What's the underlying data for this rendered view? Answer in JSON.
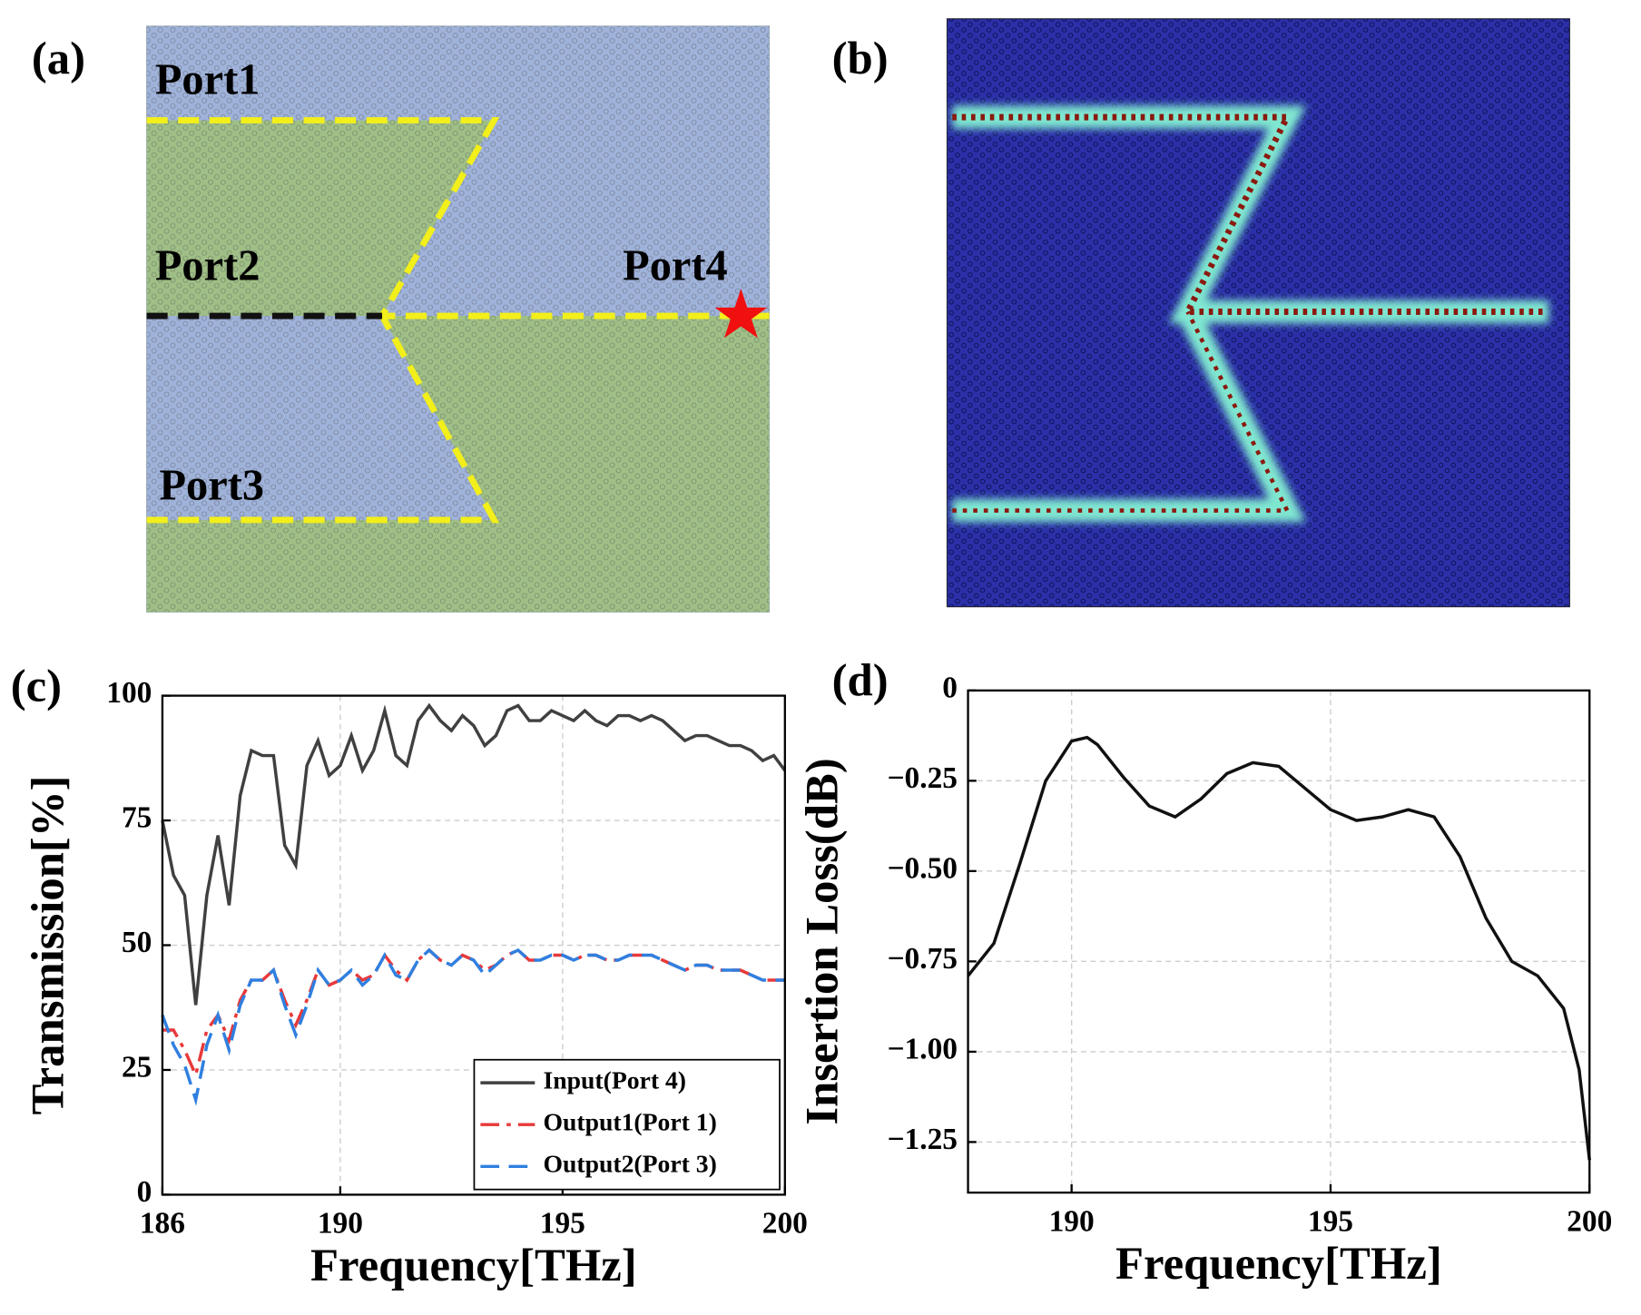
{
  "panels": {
    "a": {
      "label": "(a)",
      "ports": [
        "Port1",
        "Port2",
        "Port3",
        "Port4"
      ]
    },
    "b": {
      "label": "(b)"
    }
  },
  "chart_data": [
    {
      "type": "line",
      "panel_label": "(c)",
      "x_label": "Frequency[THz]",
      "y_label": "Transmission[%]",
      "x": [
        186,
        186.25,
        186.5,
        186.75,
        187,
        187.25,
        187.5,
        187.75,
        188,
        188.25,
        188.5,
        188.75,
        189,
        189.25,
        189.5,
        189.75,
        190,
        190.25,
        190.5,
        190.75,
        191,
        191.25,
        191.5,
        191.75,
        192,
        192.25,
        192.5,
        192.75,
        193,
        193.25,
        193.5,
        193.75,
        194,
        194.25,
        194.5,
        194.75,
        195,
        195.25,
        195.5,
        195.75,
        196,
        196.25,
        196.5,
        196.75,
        197,
        197.25,
        197.5,
        197.75,
        198,
        198.25,
        198.5,
        198.75,
        199,
        199.25,
        199.5,
        199.75,
        200
      ],
      "series": [
        {
          "name": "Input(Port 4)",
          "color": "#404040",
          "dash": "solid",
          "values": [
            75,
            64,
            60,
            38,
            60,
            72,
            58,
            80,
            89,
            88,
            88,
            70,
            66,
            86,
            91,
            84,
            86,
            92,
            85,
            89,
            97,
            88,
            86,
            95,
            98,
            95,
            93,
            96,
            94,
            90,
            92,
            97,
            98,
            95,
            95,
            97,
            96,
            95,
            97,
            95,
            94,
            96,
            96,
            95,
            96,
            95,
            93,
            91,
            92,
            92,
            91,
            90,
            90,
            89,
            87,
            88,
            85
          ]
        },
        {
          "name": "Output1(Port 1)",
          "color": "#e8393a",
          "dash": "dash-dot",
          "values": [
            33,
            33,
            29,
            24,
            33,
            36,
            31,
            39,
            43,
            43,
            45,
            39,
            34,
            39,
            45,
            42,
            43,
            45,
            43,
            44,
            48,
            45,
            43,
            47,
            49,
            47,
            46,
            48,
            47,
            45,
            46,
            48,
            49,
            47,
            47,
            48,
            48,
            47,
            48,
            48,
            47,
            47,
            48,
            48,
            48,
            47,
            46,
            45,
            46,
            46,
            45,
            45,
            45,
            44,
            43,
            43,
            43
          ]
        },
        {
          "name": "Output2(Port 3)",
          "color": "#2f7fe0",
          "dash": "dash",
          "values": [
            36,
            30,
            26,
            19,
            30,
            36,
            29,
            38,
            43,
            43,
            45,
            38,
            32,
            38,
            45,
            42,
            43,
            45,
            42,
            44,
            48,
            44,
            43,
            47,
            49,
            47,
            46,
            48,
            47,
            44,
            46,
            48,
            49,
            47,
            47,
            48,
            48,
            47,
            48,
            48,
            47,
            47,
            48,
            48,
            48,
            47,
            46,
            45,
            46,
            46,
            45,
            45,
            45,
            44,
            43,
            43,
            43
          ]
        }
      ],
      "xlim": [
        186,
        200
      ],
      "xticks": [
        186,
        190,
        195,
        200
      ],
      "ylim": [
        0,
        100
      ],
      "yticks": [
        0,
        25,
        50,
        75,
        100
      ],
      "grid": true,
      "legend": "lower right"
    },
    {
      "type": "line",
      "panel_label": "(d)",
      "x_label": "Frequency[THz]",
      "y_label": "Insertion Loss(dB)",
      "x": [
        188,
        188.5,
        189,
        189.5,
        190,
        190.3,
        190.5,
        191,
        191.5,
        192,
        192.5,
        193,
        193.5,
        194,
        194.5,
        195,
        195.5,
        196,
        196.5,
        197,
        197.5,
        198,
        198.5,
        199,
        199.5,
        199.8,
        200
      ],
      "values": [
        -0.79,
        -0.7,
        -0.48,
        -0.25,
        -0.14,
        -0.13,
        -0.15,
        -0.24,
        -0.32,
        -0.35,
        -0.3,
        -0.23,
        -0.2,
        -0.21,
        -0.27,
        -0.33,
        -0.36,
        -0.35,
        -0.33,
        -0.35,
        -0.46,
        -0.63,
        -0.75,
        -0.79,
        -0.88,
        -1.05,
        -1.3
      ],
      "color": "#111111",
      "xlim": [
        188,
        200
      ],
      "xticks": [
        190,
        195,
        200
      ],
      "ylim": [
        -1.39,
        0
      ],
      "yticks": [
        {
          "value": 0,
          "label": "0"
        },
        {
          "value": -0.25,
          "label": "−0.25"
        },
        {
          "value": -0.5,
          "label": "−0.50"
        },
        {
          "value": -0.75,
          "label": "−0.75"
        },
        {
          "value": -1,
          "label": "−1.00"
        },
        {
          "value": -1.25,
          "label": "−1.25"
        }
      ],
      "grid": true
    }
  ]
}
